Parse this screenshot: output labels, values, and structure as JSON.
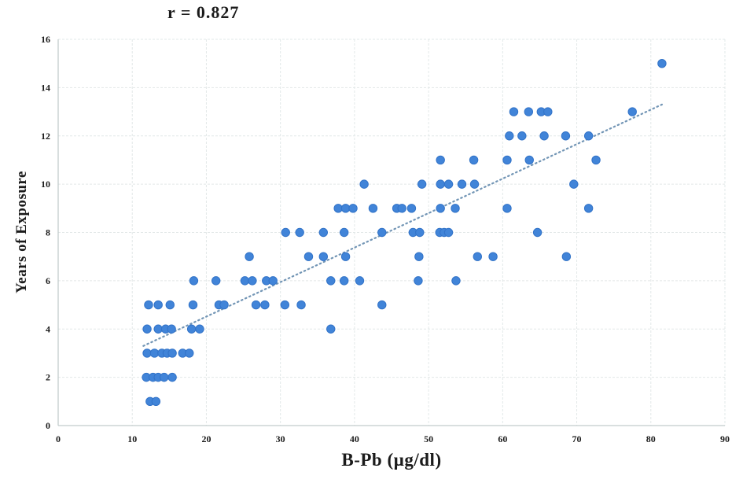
{
  "chart_data": {
    "type": "scatter",
    "title": "r = 0.827",
    "xlabel": "B-Pb (µg/dl)",
    "ylabel": "Years of Exposure",
    "xlim": [
      0,
      90
    ],
    "ylim": [
      0,
      16
    ],
    "x_ticks": [
      0,
      10,
      20,
      30,
      40,
      50,
      60,
      70,
      80,
      90
    ],
    "y_ticks": [
      0,
      2,
      4,
      6,
      8,
      10,
      12,
      14,
      16
    ],
    "grid": "on",
    "legend": "none",
    "marker_color": "#4184d8",
    "marker_edge_color": "#3273c8",
    "trend_color": "#7295b5",
    "grid_color": "#e2e8e8",
    "axis_color": "#c2cccc",
    "points": [
      [
        12.4,
        1
      ],
      [
        13.2,
        1
      ],
      [
        11.9,
        2
      ],
      [
        12.8,
        2
      ],
      [
        13.5,
        2
      ],
      [
        14.3,
        2
      ],
      [
        15.4,
        2
      ],
      [
        12,
        3
      ],
      [
        13,
        3
      ],
      [
        14,
        3
      ],
      [
        14.7,
        3
      ],
      [
        15.4,
        3
      ],
      [
        16.8,
        3
      ],
      [
        17.7,
        3
      ],
      [
        12,
        4
      ],
      [
        13.5,
        4
      ],
      [
        14.5,
        4
      ],
      [
        15.3,
        4
      ],
      [
        18,
        4
      ],
      [
        19.1,
        4
      ],
      [
        36.8,
        4
      ],
      [
        12.2,
        5
      ],
      [
        13.5,
        5
      ],
      [
        15.1,
        5
      ],
      [
        18.2,
        5
      ],
      [
        21.7,
        5
      ],
      [
        22.4,
        5
      ],
      [
        26.7,
        5
      ],
      [
        27.9,
        5
      ],
      [
        30.6,
        5
      ],
      [
        32.8,
        5
      ],
      [
        43.7,
        5
      ],
      [
        18.3,
        6
      ],
      [
        21.3,
        6
      ],
      [
        25.2,
        6
      ],
      [
        26.2,
        6
      ],
      [
        28.1,
        6
      ],
      [
        29,
        6
      ],
      [
        36.8,
        6
      ],
      [
        38.6,
        6
      ],
      [
        40.7,
        6
      ],
      [
        48.6,
        6
      ],
      [
        53.7,
        6
      ],
      [
        25.8,
        7
      ],
      [
        33.8,
        7
      ],
      [
        35.8,
        7
      ],
      [
        38.8,
        7
      ],
      [
        48.7,
        7
      ],
      [
        56.6,
        7
      ],
      [
        58.7,
        7
      ],
      [
        68.6,
        7
      ],
      [
        30.7,
        8
      ],
      [
        32.6,
        8
      ],
      [
        35.8,
        8
      ],
      [
        38.6,
        8
      ],
      [
        43.7,
        8
      ],
      [
        47.9,
        8
      ],
      [
        48.8,
        8
      ],
      [
        51.5,
        8
      ],
      [
        52.1,
        8
      ],
      [
        52.7,
        8
      ],
      [
        64.7,
        8
      ],
      [
        37.8,
        9
      ],
      [
        38.8,
        9
      ],
      [
        39.8,
        9
      ],
      [
        42.5,
        9
      ],
      [
        45.7,
        9
      ],
      [
        46.4,
        9
      ],
      [
        47.7,
        9
      ],
      [
        51.6,
        9
      ],
      [
        53.6,
        9
      ],
      [
        60.6,
        9
      ],
      [
        71.6,
        9
      ],
      [
        41.3,
        10
      ],
      [
        49.1,
        10
      ],
      [
        51.6,
        10
      ],
      [
        52.7,
        10
      ],
      [
        54.5,
        10
      ],
      [
        56.2,
        10
      ],
      [
        69.6,
        10
      ],
      [
        51.6,
        11
      ],
      [
        56.1,
        11
      ],
      [
        60.6,
        11
      ],
      [
        63.6,
        11
      ],
      [
        72.6,
        11
      ],
      [
        60.9,
        12
      ],
      [
        62.6,
        12
      ],
      [
        65.6,
        12
      ],
      [
        68.5,
        12
      ],
      [
        71.6,
        12
      ],
      [
        61.5,
        13
      ],
      [
        63.5,
        13
      ],
      [
        65.2,
        13
      ],
      [
        66.1,
        13
      ],
      [
        77.5,
        13
      ],
      [
        81.5,
        15
      ]
    ],
    "trendline": {
      "x1": 11.5,
      "y1": 3.3,
      "x2": 81.5,
      "y2": 13.3
    }
  }
}
